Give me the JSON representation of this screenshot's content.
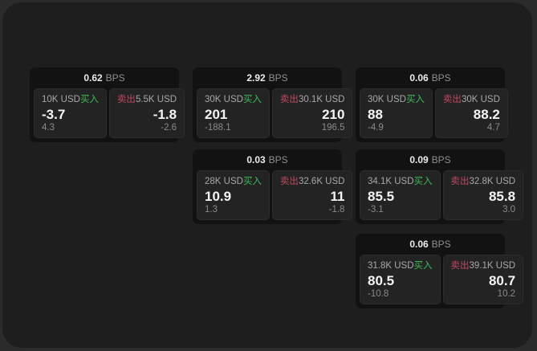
{
  "labels": {
    "bps": "BPS",
    "buy": "买入",
    "sell": "卖出"
  },
  "colors": {
    "backdrop": "#2b2b2b",
    "panel": "#1e1e1e",
    "card": "#121212",
    "tile": "#232323",
    "buy_green": "#3dbd58",
    "sell_red": "#c24a61"
  },
  "cards": [
    {
      "col": 1,
      "row": 1,
      "bps": "0.62",
      "buy": {
        "amount": "10K USD",
        "price": "-3.7",
        "delta": "4.3"
      },
      "sell": {
        "amount": "5.5K USD",
        "price": "-1.8",
        "delta": "-2.6"
      }
    },
    {
      "col": 2,
      "row": 1,
      "bps": "2.92",
      "buy": {
        "amount": "30K USD",
        "price": "201",
        "delta": "-188.1"
      },
      "sell": {
        "amount": "30.1K USD",
        "price": "210",
        "delta": "196.5"
      }
    },
    {
      "col": 3,
      "row": 1,
      "bps": "0.06",
      "buy": {
        "amount": "30K USD",
        "price": "88",
        "delta": "-4.9"
      },
      "sell": {
        "amount": "30K USD",
        "price": "88.2",
        "delta": "4.7"
      }
    },
    {
      "col": 2,
      "row": 2,
      "bps": "0.03",
      "buy": {
        "amount": "28K USD",
        "price": "10.9",
        "delta": "1.3"
      },
      "sell": {
        "amount": "32.6K USD",
        "price": "11",
        "delta": "-1.8"
      }
    },
    {
      "col": 3,
      "row": 2,
      "bps": "0.09",
      "buy": {
        "amount": "34.1K USD",
        "price": "85.5",
        "delta": "-3.1"
      },
      "sell": {
        "amount": "32.8K USD",
        "price": "85.8",
        "delta": "3.0"
      }
    },
    {
      "col": 3,
      "row": 3,
      "bps": "0.06",
      "buy": {
        "amount": "31.8K USD",
        "price": "80.5",
        "delta": "-10.8"
      },
      "sell": {
        "amount": "39.1K USD",
        "price": "80.7",
        "delta": "10.2"
      }
    }
  ]
}
